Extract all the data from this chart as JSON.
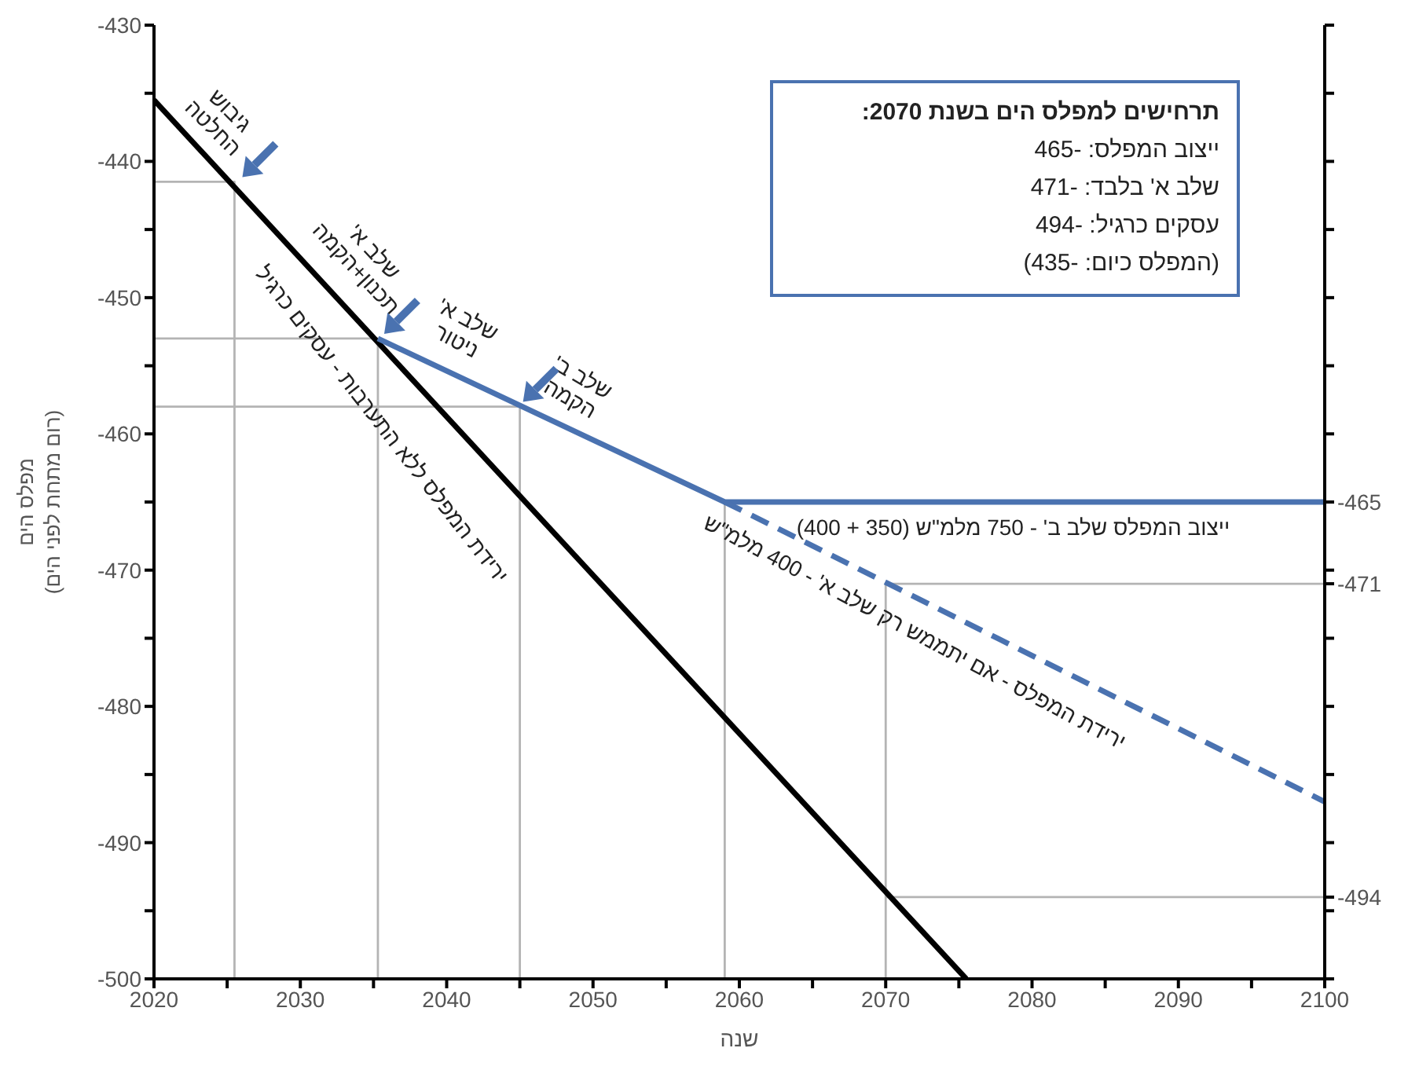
{
  "chart_data": {
    "type": "line",
    "xlabel": "שנה",
    "ylabel": "מפלס הים\n(רום מתחת לפני הים)",
    "xlim": [
      2020,
      2100
    ],
    "xticks": [
      2020,
      {
        "value": 2025,
        "label": null
      },
      2030,
      {
        "value": 2035,
        "label": null
      },
      2040,
      {
        "value": 2045,
        "label": null
      },
      2050,
      {
        "value": 2055,
        "label": null
      },
      2060,
      {
        "value": 2065,
        "label": null
      },
      2070,
      {
        "value": 2075,
        "label": null
      },
      2080,
      {
        "value": 2085,
        "label": null
      },
      2090,
      {
        "value": 2095,
        "label": null
      },
      2100
    ],
    "ylim": [
      -500,
      -430
    ],
    "yticks": [
      -430,
      {
        "value": -435,
        "label": null
      },
      -440,
      {
        "value": -445,
        "label": null
      },
      -450,
      {
        "value": -455,
        "label": null
      },
      -460,
      {
        "value": -465,
        "label": null
      },
      -470,
      {
        "value": -475,
        "label": null
      },
      -480,
      {
        "value": -485,
        "label": null
      },
      -490,
      {
        "value": -495,
        "label": null
      },
      -500
    ],
    "y2lim": [
      -500,
      -430
    ],
    "y2ticks": [
      {
        "value": -430,
        "label": null
      },
      {
        "value": -435,
        "label": null
      },
      {
        "value": -440,
        "label": null
      },
      {
        "value": -445,
        "label": null
      },
      {
        "value": -450,
        "label": null
      },
      {
        "value": -455,
        "label": null
      },
      {
        "value": -460,
        "label": null
      },
      -465,
      {
        "value": -470,
        "label": null
      },
      -471,
      {
        "value": -475,
        "label": null
      },
      {
        "value": -480,
        "label": null
      },
      {
        "value": -485,
        "label": null
      },
      {
        "value": -490,
        "label": null
      },
      -494,
      {
        "value": -495,
        "label": null
      },
      {
        "value": -500,
        "label": null
      }
    ],
    "marker": "none",
    "series": [
      {
        "color": "#b4b4b4",
        "x": [
          2020,
          2025.5,
          2025.5
        ],
        "values": [
          -441.5,
          -441.5,
          -500
        ]
      },
      {
        "color": "#b4b4b4",
        "x": [
          2020,
          2035.3,
          2035.3
        ],
        "values": [
          -453,
          -453,
          -500
        ]
      },
      {
        "color": "#b4b4b4",
        "x": [
          2020,
          2045,
          2045
        ],
        "values": [
          -458,
          -458,
          -500
        ]
      },
      {
        "color": "#b4b4b4",
        "x": [
          2059,
          2059
        ],
        "values": [
          -465,
          -500
        ]
      },
      {
        "color": "#b4b4b4",
        "x": [
          2100,
          2070,
          2070
        ],
        "values": [
          -471,
          -471,
          -500
        ]
      },
      {
        "color": "#b4b4b4",
        "x": [
          2070,
          2100
        ],
        "values": [
          -494,
          -494
        ]
      },
      {
        "color": "#000000",
        "x": [
          2020,
          2075.5
        ],
        "values": [
          -435.5,
          -500
        ]
      },
      {
        "color": "#4a72b0",
        "x": [
          2035.3,
          2059,
          2100
        ],
        "values": [
          -453,
          -465,
          -465
        ]
      },
      {
        "color": "#4a72b0",
        "line_style": "dashed",
        "x": [
          2059,
          2100
        ],
        "values": [
          -465,
          -487
        ]
      }
    ],
    "annotations": [
      {
        "text": "גיבוש\nהחלטה",
        "x": 2025.5,
        "y": -441.5
      },
      {
        "text": "שלב א'\nתכנון+הקמה",
        "x": 2035.3,
        "y": -453
      },
      {
        "text": "שלב א'\nניטור",
        "x": 2040,
        "y": -455.6
      },
      {
        "text": "שלב ב'\nהקמה",
        "x": 2045,
        "y": -458
      },
      {
        "text": "ירידת המפלס ללא התערבות - עסקים כרגיל",
        "x": 2037.3,
        "y": -455.6
      },
      {
        "text": "ייצוב המפלס שלב ב' - 750 מלמ\"ש (350 + 400)",
        "x": 2080,
        "y": -465
      },
      {
        "text": "ירידת המפלס - אם יתממש רק שלב א' - 400 מלמ\"ש",
        "x": 2072,
        "y": -472
      },
      "תרחישים למפלס הים בשנת 2070:",
      "ייצוב המפלס: -465",
      "שלב א' בלבד: -471",
      "עסקים כרגיל: -494",
      "(המפלס כיום: -435)"
    ]
  }
}
